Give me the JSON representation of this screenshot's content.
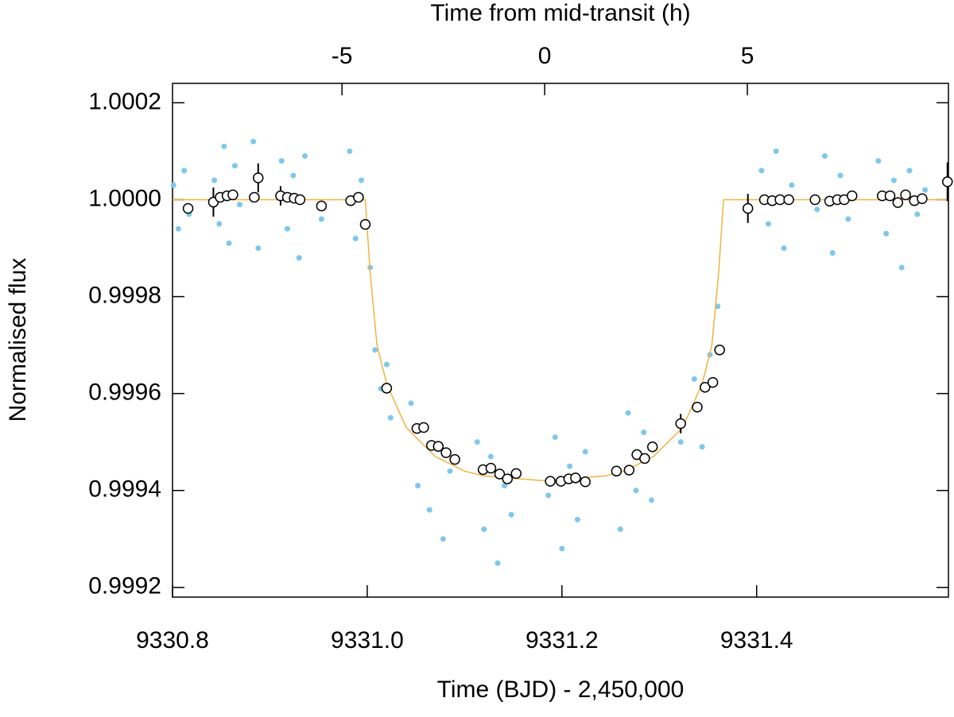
{
  "chart_data": {
    "type": "scatter",
    "xlabel": "Time (BJD) - 2,450,000",
    "ylabel": "Normalised flux",
    "x2label": "Time from mid-transit (h)",
    "xlim": [
      9330.8,
      9331.597
    ],
    "xticks": [
      9330.8,
      {
        "value": 9331.0,
        "label": "9331.0"
      },
      9331.2,
      9331.4
    ],
    "x2lim": [
      -9.18,
      9.96
    ],
    "x2ticks": [
      -5,
      0,
      5
    ],
    "ylim": [
      0.99918,
      1.00024
    ],
    "yticks": [
      0.9992,
      0.9994,
      0.9996,
      0.9998,
      {
        "value": 1.0,
        "label": "1.0000"
      },
      1.0002
    ],
    "series": [
      {
        "name": "raw",
        "color": "#7ec8ea",
        "marker": "dot",
        "x": [
          9330.801,
          9330.806,
          9330.812,
          9330.817,
          9330.843,
          9330.848,
          9330.853,
          9330.858,
          9330.864,
          9330.869,
          9330.883,
          9330.888,
          9330.912,
          9330.918,
          9330.924,
          9330.93,
          9330.936,
          9330.953,
          9330.982,
          9330.988,
          9330.994,
          9331.003,
          9331.008,
          9331.014,
          9331.02,
          9331.024,
          9331.045,
          9331.052,
          9331.058,
          9331.064,
          9331.071,
          9331.078,
          9331.085,
          9331.113,
          9331.12,
          9331.127,
          9331.134,
          9331.141,
          9331.148,
          9331.186,
          9331.193,
          9331.2,
          9331.208,
          9331.216,
          9331.224,
          9331.26,
          9331.268,
          9331.276,
          9331.284,
          9331.292,
          9331.322,
          9331.336,
          9331.344,
          9331.352,
          9331.36,
          9331.405,
          9331.412,
          9331.42,
          9331.428,
          9331.436,
          9331.462,
          9331.47,
          9331.478,
          9331.486,
          9331.494,
          9331.525,
          9331.533,
          9331.541,
          9331.549,
          9331.557,
          9331.565,
          9331.573
        ],
        "values": [
          1.00003,
          0.99994,
          1.00006,
          0.99997,
          1.00004,
          0.99995,
          1.00011,
          0.99991,
          1.00007,
          0.99999,
          1.00012,
          0.9999,
          1.00008,
          0.99994,
          1.00005,
          0.99988,
          1.00009,
          0.99996,
          1.0001,
          0.99992,
          1.00004,
          0.99986,
          0.99969,
          0.99961,
          0.99966,
          0.99955,
          0.99958,
          0.99941,
          0.99953,
          0.99936,
          0.99949,
          0.9993,
          0.99944,
          0.9995,
          0.99932,
          0.99947,
          0.99925,
          0.99941,
          0.99935,
          0.99939,
          0.99951,
          0.99928,
          0.99945,
          0.99934,
          0.99948,
          0.99932,
          0.99956,
          0.9994,
          0.99952,
          0.99938,
          0.9995,
          0.99963,
          0.99949,
          0.99968,
          0.99978,
          1.00006,
          0.99995,
          1.0001,
          0.9999,
          1.00003,
          0.99998,
          1.00009,
          0.99989,
          1.00005,
          0.99996,
          1.00008,
          0.99993,
          1.00004,
          0.99986,
          1.00006,
          0.99997,
          1.00002
        ]
      },
      {
        "name": "binned",
        "color": "#ffffff",
        "marker": "circle",
        "x": [
          9330.816,
          9330.842,
          9330.849,
          9330.856,
          9330.862,
          9330.884,
          9330.888,
          9330.911,
          9330.918,
          9330.925,
          9330.931,
          9330.953,
          9330.983,
          9330.991,
          9330.998,
          9331.02,
          9331.051,
          9331.058,
          9331.066,
          9331.073,
          9331.081,
          9331.09,
          9331.119,
          9331.127,
          9331.136,
          9331.144,
          9331.153,
          9331.188,
          9331.199,
          9331.207,
          9331.214,
          9331.224,
          9331.256,
          9331.269,
          9331.277,
          9331.285,
          9331.293,
          9331.322,
          9331.339,
          9331.347,
          9331.355,
          9331.362,
          9331.391,
          9331.408,
          9331.416,
          9331.424,
          9331.433,
          9331.46,
          9331.475,
          9331.483,
          9331.49,
          9331.498,
          9331.529,
          9331.537,
          9331.545,
          9331.553,
          9331.562,
          9331.57,
          9331.596
        ],
        "values": [
          0.999982,
          0.999995,
          1.000005,
          1.000008,
          1.00001,
          1.000005,
          1.000045,
          1.000008,
          1.000005,
          1.000003,
          1.0,
          0.999987,
          0.999998,
          1.000005,
          0.999949,
          0.999611,
          0.999528,
          0.99953,
          0.999493,
          0.999491,
          0.999478,
          0.999464,
          0.999443,
          0.999446,
          0.999434,
          0.999424,
          0.999435,
          0.999419,
          0.999419,
          0.999424,
          0.999426,
          0.999418,
          0.99944,
          0.999442,
          0.999474,
          0.999466,
          0.99949,
          0.999538,
          0.999572,
          0.999613,
          0.999623,
          0.99969,
          0.999982,
          1.0,
          0.999998,
          1.0,
          1.0,
          1.0,
          0.999997,
          1.0,
          1.0,
          1.000008,
          1.000008,
          1.000008,
          0.999994,
          1.00001,
          0.999998,
          1.000002,
          1.000037
        ],
        "errors": [
          1e-05,
          3e-05,
          1e-05,
          1e-05,
          1e-05,
          1e-05,
          3e-05,
          2e-05,
          1e-05,
          1e-05,
          1e-05,
          1e-05,
          1e-05,
          1e-05,
          1e-05,
          1e-05,
          1e-05,
          1e-05,
          1e-05,
          1e-05,
          1e-05,
          1e-05,
          1e-05,
          1e-05,
          1e-05,
          1e-05,
          1e-05,
          1e-05,
          1e-05,
          1e-05,
          1e-05,
          1e-05,
          1e-05,
          1e-05,
          1e-05,
          1e-05,
          1e-05,
          2e-05,
          1e-05,
          1e-05,
          1e-05,
          1e-05,
          3e-05,
          1e-05,
          1e-05,
          1e-05,
          1e-05,
          1e-05,
          1e-05,
          1e-05,
          1e-05,
          1e-05,
          1e-05,
          1e-05,
          1e-05,
          1e-05,
          1e-05,
          1e-05,
          4e-05
        ]
      },
      {
        "name": "model",
        "color": "#f0b43c",
        "marker": "line",
        "x": [
          9330.8,
          9330.998,
          9331.003,
          9331.01,
          9331.02,
          9331.04,
          9331.07,
          9331.1,
          9331.12,
          9331.182,
          9331.244,
          9331.264,
          9331.294,
          9331.324,
          9331.344,
          9331.354,
          9331.361,
          9331.366,
          9331.597
        ],
        "values": [
          1.0,
          1.0,
          0.99985,
          0.9997,
          0.99962,
          0.99953,
          0.99947,
          0.99944,
          0.99943,
          0.99942,
          0.99943,
          0.99944,
          0.99947,
          0.99953,
          0.99962,
          0.9997,
          0.99985,
          1.0,
          1.0
        ]
      }
    ]
  }
}
